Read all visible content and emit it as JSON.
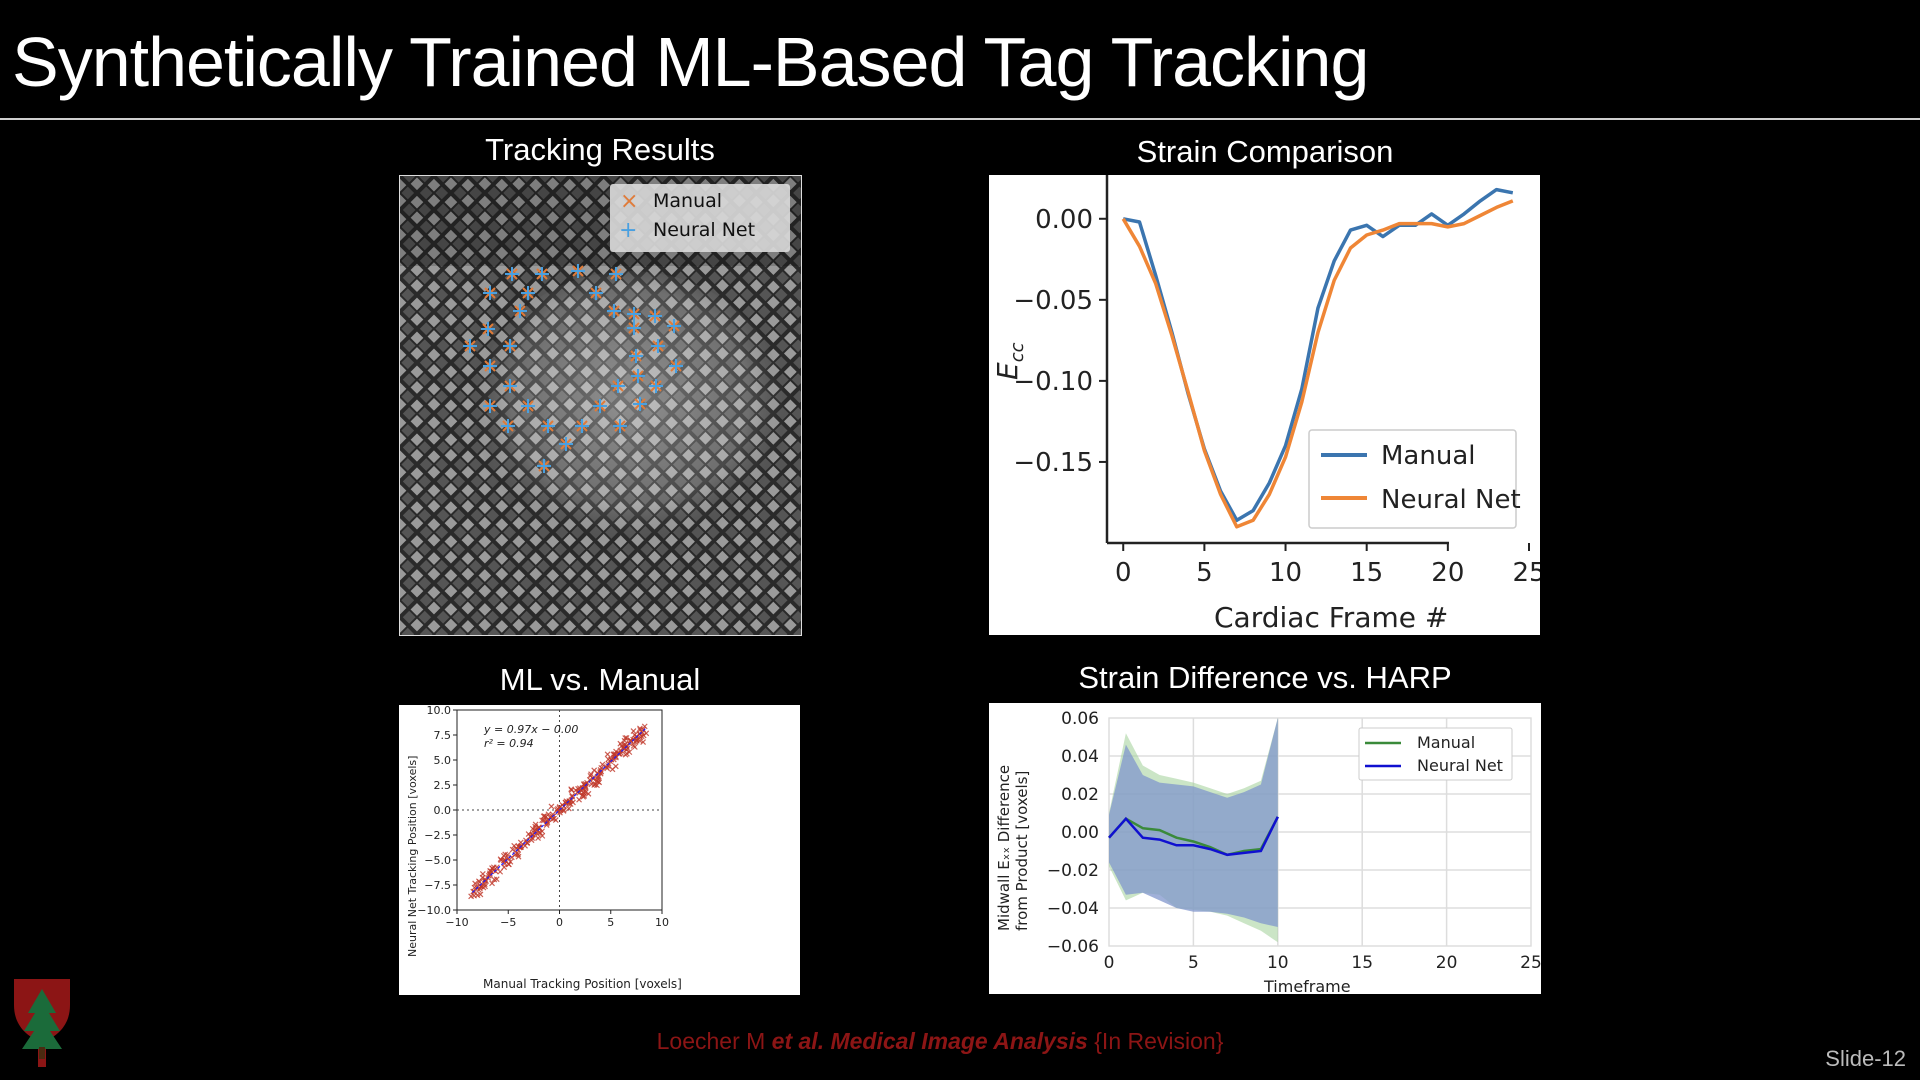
{
  "slide": {
    "title": "Synthetically Trained ML-Based Tag Tracking",
    "slide_number": "Slide-12",
    "citation_authors": "Loecher M ",
    "citation_etal": "et al",
    "citation_journal": ". Medical Image Analysis",
    "citation_status": " {In Revision}"
  },
  "panels": {
    "tracking_title": "Tracking Results",
    "strain_title": "Strain Comparison",
    "mlvsmanual_title": "ML vs. Manual",
    "harp_title": "Strain Difference vs. HARP"
  },
  "tracking_legend": {
    "manual": "Manual",
    "neural": "Neural Net",
    "manual_color": "#e07b39",
    "neural_color": "#4aa0e0"
  },
  "colors": {
    "manual": "#3b75af",
    "neural": "#ef8636",
    "harp_manual": "#3a8a3a",
    "harp_neural": "#1010d0",
    "accent": "#8c1515"
  },
  "chart_data": [
    {
      "type": "line",
      "title": "Strain Comparison",
      "xlabel": "Cardiac Frame #",
      "ylabel": "E_cc",
      "xlim": [
        -1,
        25
      ],
      "ylim": [
        -0.2,
        0.027
      ],
      "xticks": [
        0,
        5,
        10,
        15,
        20,
        25
      ],
      "yticks": [
        0.0,
        -0.05,
        -0.1,
        -0.15
      ],
      "ytick_labels": [
        "0.00",
        "−0.05",
        "−0.10",
        "−0.15"
      ],
      "legend_position": "lower-right",
      "x": [
        0,
        1,
        2,
        3,
        4,
        5,
        6,
        7,
        8,
        9,
        10,
        11,
        12,
        13,
        14,
        15,
        16,
        17,
        18,
        19,
        20,
        21,
        22,
        23,
        24
      ],
      "series": [
        {
          "name": "Manual",
          "values": [
            0.0,
            -0.002,
            -0.035,
            -0.07,
            -0.108,
            -0.142,
            -0.168,
            -0.186,
            -0.18,
            -0.163,
            -0.14,
            -0.105,
            -0.055,
            -0.026,
            -0.007,
            -0.004,
            -0.011,
            -0.004,
            -0.004,
            0.003,
            -0.004,
            0.003,
            0.011,
            0.018,
            0.016
          ]
        },
        {
          "name": "Neural Net",
          "values": [
            0.0,
            -0.017,
            -0.04,
            -0.072,
            -0.107,
            -0.143,
            -0.17,
            -0.19,
            -0.186,
            -0.17,
            -0.147,
            -0.113,
            -0.07,
            -0.038,
            -0.018,
            -0.01,
            -0.007,
            -0.003,
            -0.003,
            -0.003,
            -0.005,
            -0.003,
            0.002,
            0.007,
            0.011
          ]
        }
      ]
    },
    {
      "type": "scatter",
      "title": "ML vs. Manual",
      "xlabel": "Manual Tracking Position [voxels]",
      "ylabel": "Neural Net Tracking Position [voxels]",
      "xlim": [
        -10,
        10
      ],
      "ylim": [
        -10,
        10
      ],
      "xticks": [
        -10,
        -5,
        0,
        5,
        10
      ],
      "xtick_labels": [
        "−10",
        "−5",
        "0",
        "5",
        "10"
      ],
      "yticks": [
        10,
        7.5,
        5,
        2.5,
        0,
        -2.5,
        -5,
        -7.5,
        -10
      ],
      "ytick_labels": [
        "10.0",
        "7.5",
        "5.0",
        "2.5",
        "0.0",
        "−2.5",
        "−5.0",
        "−7.5",
        "−10.0"
      ],
      "annotation_fit": "y = 0.97x − 0.00",
      "annotation_r2": "r² = 0.94",
      "fit": {
        "slope": 0.97,
        "intercept": 0.0
      },
      "point_spread": 0.6,
      "point_range": [
        -8.5,
        8.5
      ]
    },
    {
      "type": "line",
      "title": "Strain Difference vs. HARP",
      "xlabel": "Timeframe",
      "ylabel_line1": "Midwall Eₓₓ Difference",
      "ylabel_line2": "from Product [voxels]",
      "xlim": [
        0,
        25
      ],
      "ylim": [
        -0.06,
        0.06
      ],
      "xticks": [
        0,
        5,
        10,
        15,
        20,
        25
      ],
      "yticks": [
        0.06,
        0.04,
        0.02,
        0.0,
        -0.02,
        -0.04,
        -0.06
      ],
      "ytick_labels": [
        "0.06",
        "0.04",
        "0.02",
        "0.00",
        "−0.02",
        "−0.04",
        "−0.06"
      ],
      "legend_position": "top-right",
      "x": [
        0,
        1,
        2,
        3,
        4,
        5,
        6,
        7,
        8,
        9,
        10
      ],
      "series": [
        {
          "name": "Manual",
          "values": [
            -0.003,
            0.007,
            0.002,
            0.001,
            -0.003,
            -0.005,
            -0.008,
            -0.012,
            -0.01,
            -0.009,
            0.008
          ],
          "band_upper": [
            0.01,
            0.052,
            0.035,
            0.03,
            0.028,
            0.026,
            0.023,
            0.02,
            0.023,
            0.027,
            0.065
          ],
          "band_lower": [
            -0.018,
            -0.036,
            -0.032,
            -0.033,
            -0.04,
            -0.041,
            -0.042,
            -0.044,
            -0.048,
            -0.052,
            -0.058
          ]
        },
        {
          "name": "Neural Net",
          "values": [
            -0.003,
            0.007,
            -0.003,
            -0.004,
            -0.007,
            -0.007,
            -0.009,
            -0.012,
            -0.011,
            -0.01,
            0.008
          ],
          "band_upper": [
            0.009,
            0.046,
            0.03,
            0.026,
            0.025,
            0.024,
            0.021,
            0.018,
            0.021,
            0.025,
            0.065
          ],
          "band_lower": [
            -0.016,
            -0.033,
            -0.032,
            -0.036,
            -0.04,
            -0.042,
            -0.042,
            -0.043,
            -0.045,
            -0.048,
            -0.05
          ]
        }
      ]
    }
  ]
}
